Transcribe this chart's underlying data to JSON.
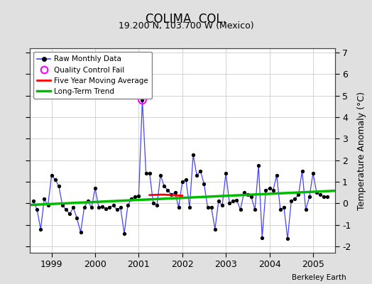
{
  "title": "COLIMA  COL.",
  "subtitle": "19.200 N, 103.700 W (Mexico)",
  "ylabel": "Temperature Anomaly (°C)",
  "credit": "Berkeley Earth",
  "xlim": [
    1998.5,
    2005.5
  ],
  "ylim": [
    -2.3,
    7.2
  ],
  "yticks": [
    -2,
    -1,
    0,
    1,
    2,
    3,
    4,
    5,
    6,
    7
  ],
  "xticks": [
    1999,
    2000,
    2001,
    2002,
    2003,
    2004,
    2005
  ],
  "fig_bg_color": "#e0e0e0",
  "plot_bg_color": "#ffffff",
  "raw_data": {
    "x": [
      1998.583,
      1998.667,
      1998.75,
      1998.833,
      1998.917,
      1999.0,
      1999.083,
      1999.167,
      1999.25,
      1999.333,
      1999.417,
      1999.5,
      1999.583,
      1999.667,
      1999.75,
      1999.833,
      1999.917,
      2000.0,
      2000.083,
      2000.167,
      2000.25,
      2000.333,
      2000.417,
      2000.5,
      2000.583,
      2000.667,
      2000.75,
      2000.833,
      2000.917,
      2001.0,
      2001.083,
      2001.167,
      2001.25,
      2001.333,
      2001.417,
      2001.5,
      2001.583,
      2001.667,
      2001.75,
      2001.833,
      2001.917,
      2002.0,
      2002.083,
      2002.167,
      2002.25,
      2002.333,
      2002.417,
      2002.5,
      2002.583,
      2002.667,
      2002.75,
      2002.833,
      2002.917,
      2003.0,
      2003.083,
      2003.167,
      2003.25,
      2003.333,
      2003.417,
      2003.5,
      2003.583,
      2003.667,
      2003.75,
      2003.833,
      2003.917,
      2004.0,
      2004.083,
      2004.167,
      2004.25,
      2004.333,
      2004.417,
      2004.5,
      2004.583,
      2004.667,
      2004.75,
      2004.833,
      2004.917,
      2005.0,
      2005.083,
      2005.167,
      2005.25,
      2005.333
    ],
    "y": [
      0.1,
      -0.3,
      -1.2,
      0.2,
      -0.1,
      1.3,
      1.1,
      0.8,
      -0.1,
      -0.3,
      -0.5,
      -0.2,
      -0.7,
      -1.35,
      -0.2,
      0.1,
      -0.2,
      0.7,
      -0.2,
      -0.15,
      -0.25,
      -0.2,
      -0.1,
      -0.3,
      -0.2,
      -1.4,
      -0.1,
      0.2,
      0.3,
      0.35,
      4.8,
      1.4,
      1.4,
      0.0,
      -0.1,
      1.3,
      0.8,
      0.6,
      0.4,
      0.5,
      -0.2,
      1.0,
      1.1,
      -0.2,
      2.25,
      1.3,
      1.5,
      0.9,
      -0.2,
      -0.2,
      -1.2,
      0.1,
      -0.1,
      1.4,
      0.0,
      0.1,
      0.15,
      -0.3,
      0.5,
      0.4,
      0.3,
      -0.3,
      1.75,
      -1.6,
      0.6,
      0.7,
      0.6,
      1.3,
      -0.3,
      -0.2,
      -1.65,
      0.1,
      0.2,
      0.4,
      1.5,
      -0.3,
      0.3,
      1.4,
      0.5,
      0.4,
      0.3,
      0.3
    ]
  },
  "qc_fail": {
    "x": [
      2001.083
    ],
    "y": [
      4.8
    ]
  },
  "five_year_ma": {
    "x": [
      2001.25,
      2001.5,
      2001.583,
      2001.75,
      2002.0
    ],
    "y": [
      0.38,
      0.4,
      0.4,
      0.38,
      0.35
    ]
  },
  "long_term_trend": {
    "x": [
      1998.5,
      2005.5
    ],
    "y": [
      -0.08,
      0.58
    ]
  },
  "colors": {
    "raw_line": "#4444ff",
    "raw_marker": "#000000",
    "qc_marker": "#ff00ff",
    "five_year_ma": "#ff0000",
    "long_term_trend": "#00bb00",
    "grid": "#cccccc"
  }
}
